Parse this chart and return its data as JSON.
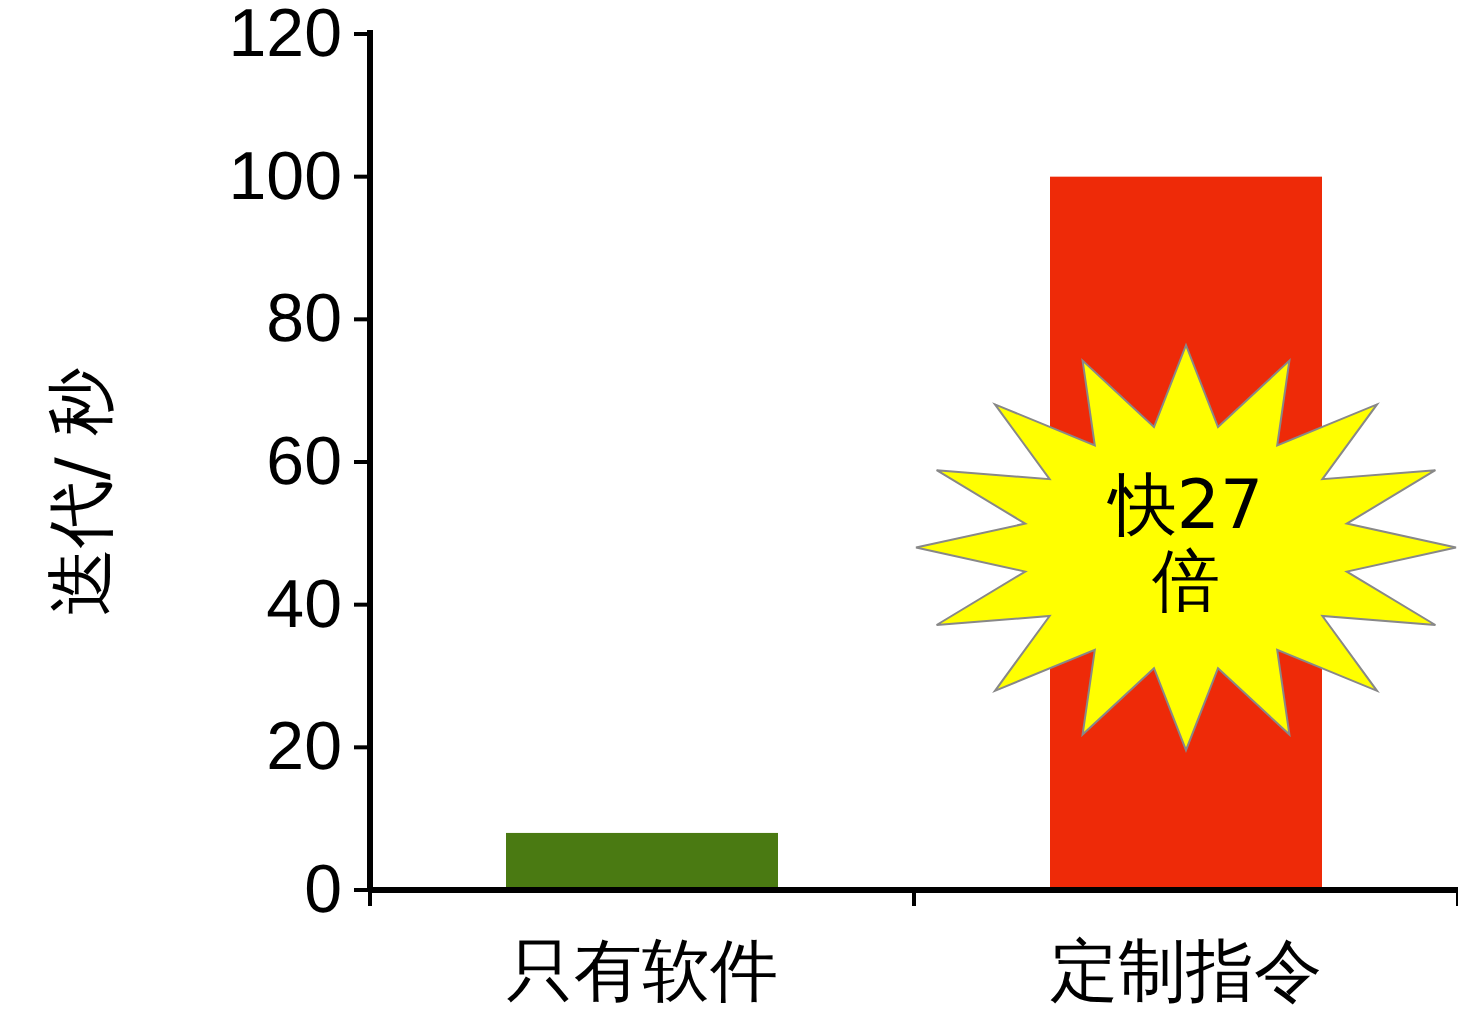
{
  "chart_data": {
    "type": "bar",
    "ylabel": "迭代/ 秒",
    "categories": [
      "只有软件",
      "定制指令"
    ],
    "values": [
      8,
      100
    ],
    "colors": [
      "#4a7a12",
      "#ee2a08"
    ],
    "ylim": [
      0,
      120
    ],
    "yticks": [
      0,
      20,
      40,
      60,
      80,
      100,
      120
    ],
    "grid": false,
    "annotations": [
      "快27倍"
    ]
  }
}
